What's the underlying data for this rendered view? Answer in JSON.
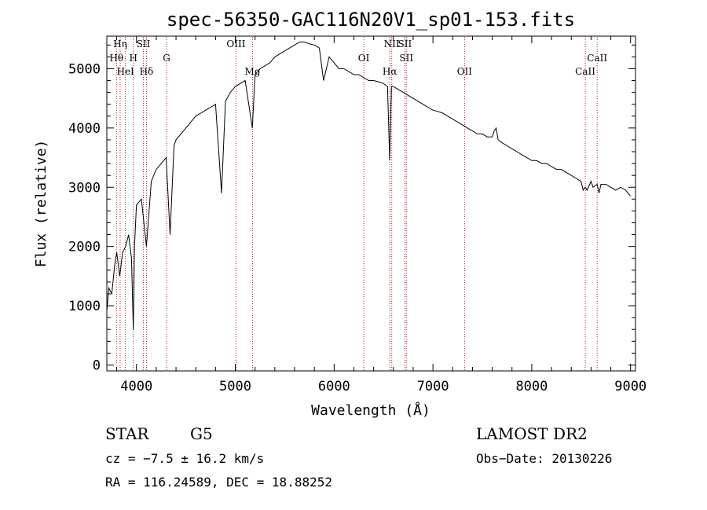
{
  "chart_data": {
    "type": "line",
    "title": "spec-56350-GAC116N20V1_sp01-153.fits",
    "xlabel": "Wavelength (Å)",
    "ylabel": "Flux (relative)",
    "xlim": [
      3700,
      9050
    ],
    "ylim": [
      -100,
      5550
    ],
    "xticks": [
      4000,
      5000,
      6000,
      7000,
      8000,
      9000
    ],
    "yticks": [
      0,
      1000,
      2000,
      3000,
      4000,
      5000
    ],
    "grid": false,
    "line_color": "#000000",
    "marker_color": "#b22222",
    "series": [
      {
        "x": [
          3700,
          3720,
          3750,
          3780,
          3800,
          3830,
          3860,
          3890,
          3920,
          3950,
          3968,
          3980,
          4000,
          4050,
          4101,
          4150,
          4200,
          4250,
          4300,
          4340,
          4380,
          4400,
          4450,
          4500,
          4550,
          4600,
          4650,
          4700,
          4750,
          4800,
          4861,
          4900,
          4950,
          5000,
          5050,
          5100,
          5172,
          5200,
          5250,
          5300,
          5350,
          5400,
          5450,
          5500,
          5550,
          5600,
          5650,
          5700,
          5750,
          5800,
          5850,
          5893,
          5950,
          6000,
          6050,
          6100,
          6150,
          6200,
          6250,
          6300,
          6350,
          6400,
          6450,
          6500,
          6540,
          6563,
          6580,
          6600,
          6650,
          6700,
          6750,
          6800,
          6850,
          6900,
          6950,
          7000,
          7050,
          7100,
          7150,
          7200,
          7250,
          7300,
          7350,
          7400,
          7450,
          7500,
          7550,
          7600,
          7620,
          7640,
          7660,
          7700,
          7750,
          7800,
          7850,
          7900,
          7950,
          8000,
          8050,
          8100,
          8150,
          8200,
          8250,
          8300,
          8350,
          8400,
          8450,
          8498,
          8520,
          8542,
          8560,
          8600,
          8620,
          8662,
          8680,
          8700,
          8750,
          8800,
          8850,
          8900,
          8950,
          9000
        ],
        "y": [
          900,
          1300,
          1200,
          1700,
          1900,
          1500,
          1900,
          2000,
          2200,
          1800,
          600,
          2000,
          2700,
          2800,
          2000,
          3100,
          3300,
          3400,
          3500,
          2200,
          3700,
          3800,
          3900,
          4000,
          4100,
          4200,
          4250,
          4300,
          4350,
          4400,
          2900,
          4450,
          4600,
          4700,
          4750,
          4800,
          4000,
          4900,
          5000,
          5050,
          5100,
          5200,
          5250,
          5300,
          5350,
          5400,
          5450,
          5450,
          5420,
          5400,
          5350,
          4800,
          5200,
          5100,
          5000,
          5000,
          4950,
          4900,
          4900,
          4850,
          4800,
          4800,
          4780,
          4750,
          4700,
          3450,
          4700,
          4700,
          4650,
          4600,
          4550,
          4500,
          4450,
          4400,
          4350,
          4300,
          4280,
          4250,
          4200,
          4150,
          4100,
          4050,
          4000,
          3950,
          3900,
          3900,
          3850,
          3850,
          3950,
          4000,
          3800,
          3750,
          3700,
          3650,
          3600,
          3550,
          3500,
          3450,
          3450,
          3400,
          3400,
          3350,
          3300,
          3300,
          3250,
          3200,
          3150,
          3100,
          2950,
          3000,
          2950,
          3100,
          3000,
          3050,
          2900,
          3050,
          3050,
          3000,
          2950,
          3000,
          2950,
          2850
        ]
      }
    ],
    "annotations": [
      {
        "label": "Hη",
        "x": 3835,
        "row": 0
      },
      {
        "label": "Hθ",
        "x": 3798,
        "row": 1
      },
      {
        "label": "H",
        "x": 3968,
        "row": 1
      },
      {
        "label": "HeI",
        "x": 3888,
        "row": 2
      },
      {
        "label": "SII",
        "x": 4070,
        "row": 0
      },
      {
        "label": "Hδ",
        "x": 4101,
        "row": 2
      },
      {
        "label": "G",
        "x": 4305,
        "row": 1
      },
      {
        "label": "OIII",
        "x": 5007,
        "row": 0
      },
      {
        "label": "Mg",
        "x": 5175,
        "row": 2
      },
      {
        "label": "OI",
        "x": 6300,
        "row": 1
      },
      {
        "label": "NII",
        "x": 6583,
        "row": 0
      },
      {
        "label": "Hα",
        "x": 6563,
        "row": 2
      },
      {
        "label": "SII",
        "x": 6716,
        "row": 0
      },
      {
        "label": "SII",
        "x": 6731,
        "row": 1
      },
      {
        "label": "OII",
        "x": 7320,
        "row": 2
      },
      {
        "label": "CaII",
        "x": 8662,
        "row": 1
      },
      {
        "label": "CaII",
        "x": 8542,
        "row": 2
      }
    ]
  },
  "info": {
    "class": "STAR",
    "subclass": "G5",
    "survey": "LAMOST DR2",
    "cz": "cz = −7.5 ± 16.2 km/s",
    "obs_date": "Obs−Date: 20130226",
    "radec": "RA = 116.24589, DEC =  18.88252"
  }
}
